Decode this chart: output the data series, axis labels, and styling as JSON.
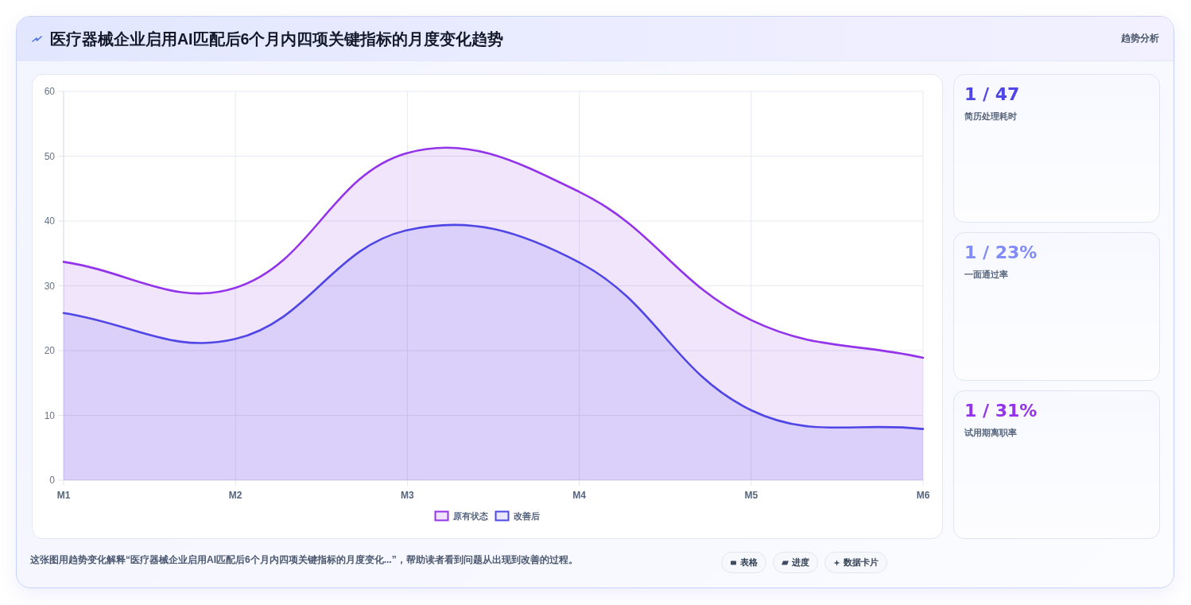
{
  "chart_data": [
    {
      "type": "area",
      "title": "医疗器械企业启用AI匹配后6个月内四项关键指标的月度变化趋势",
      "categories": [
        "M1",
        "M2",
        "M3",
        "M4",
        "M5",
        "M6"
      ],
      "series": [
        {
          "name": "原有状态",
          "color": "#9333ea",
          "values": [
            33.7,
            29.7,
            50.5,
            44.5,
            24.7,
            18.9
          ]
        },
        {
          "name": "改善后",
          "color": "#4f46e5",
          "values": [
            25.8,
            21.8,
            38.6,
            33.6,
            10.8,
            7.9
          ]
        }
      ],
      "ylim": [
        0,
        60
      ],
      "yticks": [
        0,
        10,
        20,
        30,
        40,
        50,
        60
      ],
      "grid": true,
      "legend": "bottom",
      "marker": "none",
      "line_style": "solid",
      "annotations": [
        "趋势分析",
        "这张图用趋势变化解释“医疗器械企业启用AI匹配后6个月内四项关键指标的月度变化...”，帮助读者看到问题从出现到改善的过程。",
        "表格",
        "进度",
        "数据卡片"
      ]
    },
    {
      "type": "other",
      "annotations": [
        "1 / 47",
        "简历处理耗时",
        "1 / 23%",
        "一面通过率",
        "1 / 31%",
        "试用期离职率"
      ]
    }
  ]
}
